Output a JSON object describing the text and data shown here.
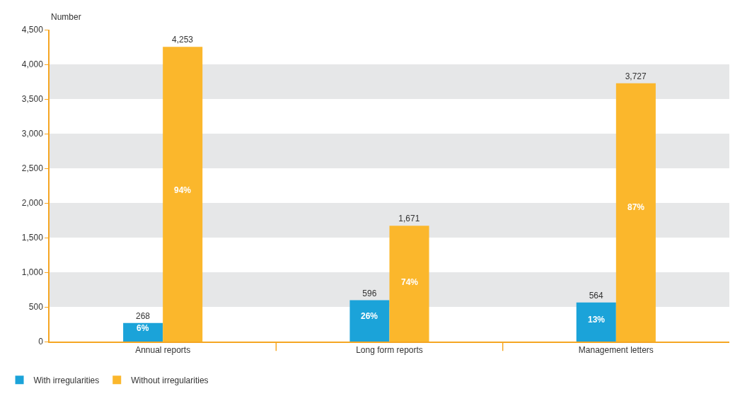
{
  "chart_data": {
    "type": "bar",
    "ylabel": "Number",
    "categories": [
      "Annual reports",
      "Long form reports",
      "Management letters"
    ],
    "series": [
      {
        "name": "With irregularities",
        "color": "#1ba3d9",
        "values": [
          268,
          596,
          564
        ],
        "value_labels": [
          "268",
          "596",
          "564"
        ]
      },
      {
        "name": "Without irregularities",
        "color": "#fbb72c",
        "values": [
          4253,
          1671,
          3727
        ],
        "value_labels": [
          "4,253",
          "1,671",
          "3,727"
        ]
      }
    ],
    "ylim": [
      0,
      4500
    ],
    "yticks": [
      0,
      500,
      {
        "value": 1000,
        "label": "1,000"
      },
      {
        "value": 1500,
        "label": "1,500"
      },
      {
        "value": 2000,
        "label": "2,000"
      },
      {
        "value": 2500,
        "label": "2,500"
      },
      {
        "value": 3000,
        "label": "3,000"
      },
      {
        "value": 3500,
        "label": "3,500"
      },
      {
        "value": 4000,
        "label": "4,000"
      },
      {
        "value": 4500,
        "label": "4,500"
      }
    ],
    "annotations": [
      {
        "text": "6%",
        "x": "Annual reports",
        "y": 190
      },
      {
        "text": "94%",
        "x": "Annual reports",
        "y": 2180
      },
      {
        "text": "26%",
        "x": "Long form reports",
        "y": 370
      },
      {
        "text": "74%",
        "x": "Long form reports",
        "y": 860
      },
      {
        "text": "13%",
        "x": "Management letters",
        "y": 320
      },
      {
        "text": "87%",
        "x": "Management letters",
        "y": 1940
      }
    ],
    "bands": [
      {
        "axis": "y",
        "from": 500,
        "to": 1000,
        "color": "#e6e7e8"
      },
      {
        "axis": "y",
        "from": 1500,
        "to": 2000,
        "color": "#e6e7e8"
      },
      {
        "axis": "y",
        "from": 2500,
        "to": 3000,
        "color": "#e6e7e8"
      },
      {
        "axis": "y",
        "from": 3500,
        "to": 4000,
        "color": "#e6e7e8"
      }
    ],
    "legend": "bottom left"
  }
}
